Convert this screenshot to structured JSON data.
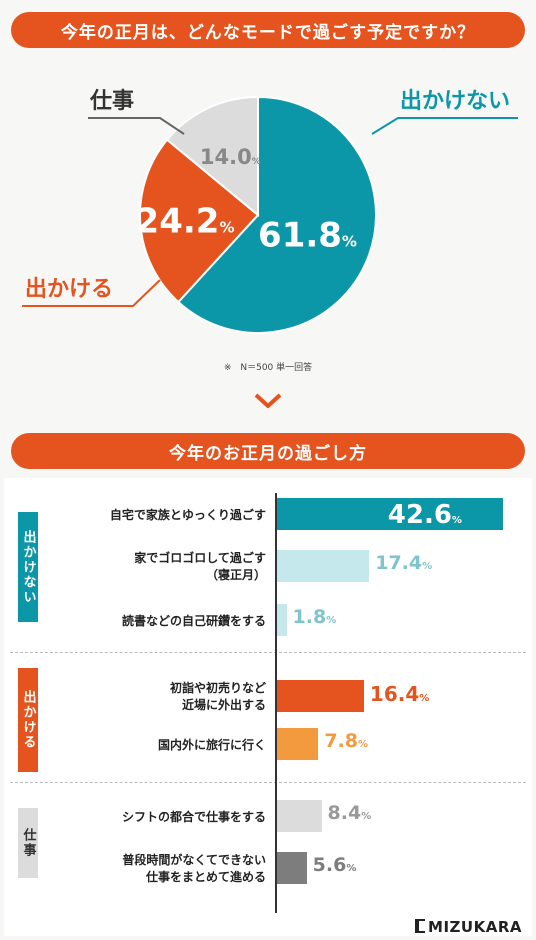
{
  "header1": "今年の正月は、どんなモードで過ごす予定ですか？",
  "header2": "今年のお正月の過ごし方",
  "note": "※　N＝500 単一回答",
  "logo": "MIZUKARA",
  "percent_sign": "%",
  "colors": {
    "teal": "#0c97a8",
    "orange": "#e5541e",
    "gray": "#dcdcdc",
    "lightteal": "#c5e8ec",
    "lightorange": "#f39a3e",
    "darkgray": "#7d7d7d"
  },
  "chart_data": [
    {
      "type": "pie",
      "title": "今年の正月は、どんなモードで過ごす予定ですか？",
      "slices": [
        {
          "name": "出かけない",
          "value": 61.8,
          "color": "#0c97a8"
        },
        {
          "name": "出かける",
          "value": 24.2,
          "color": "#e5541e"
        },
        {
          "name": "仕事",
          "value": 14.0,
          "color": "#dcdcdc"
        }
      ]
    },
    {
      "type": "bar",
      "title": "今年のお正月の過ごし方",
      "groups": [
        {
          "name": "出かけない",
          "color": "#0c97a8",
          "items": [
            {
              "label": "自宅で家族とゆっくり過ごす",
              "value": 42.6,
              "color": "#0c97a8"
            },
            {
              "label": "家でゴロゴロして過ごす\n（寝正月）",
              "value": 17.4,
              "color": "#c5e8ec"
            },
            {
              "label": "読書などの自己研鑽をする",
              "value": 1.8,
              "color": "#c5e8ec"
            }
          ]
        },
        {
          "name": "出かける",
          "color": "#e5541e",
          "items": [
            {
              "label": "初詣や初売りなど\n近場に外出する",
              "value": 16.4,
              "color": "#e5541e"
            },
            {
              "label": "国内外に旅行に行く",
              "value": 7.8,
              "color": "#f39a3e"
            }
          ]
        },
        {
          "name": "仕事",
          "color": "#dcdcdc",
          "items": [
            {
              "label": "シフトの都合で仕事をする",
              "value": 8.4,
              "color": "#dcdcdc"
            },
            {
              "label": "普段時間がなくてできない\n仕事をまとめて進める",
              "value": 5.6,
              "color": "#7d7d7d"
            }
          ]
        }
      ]
    }
  ]
}
